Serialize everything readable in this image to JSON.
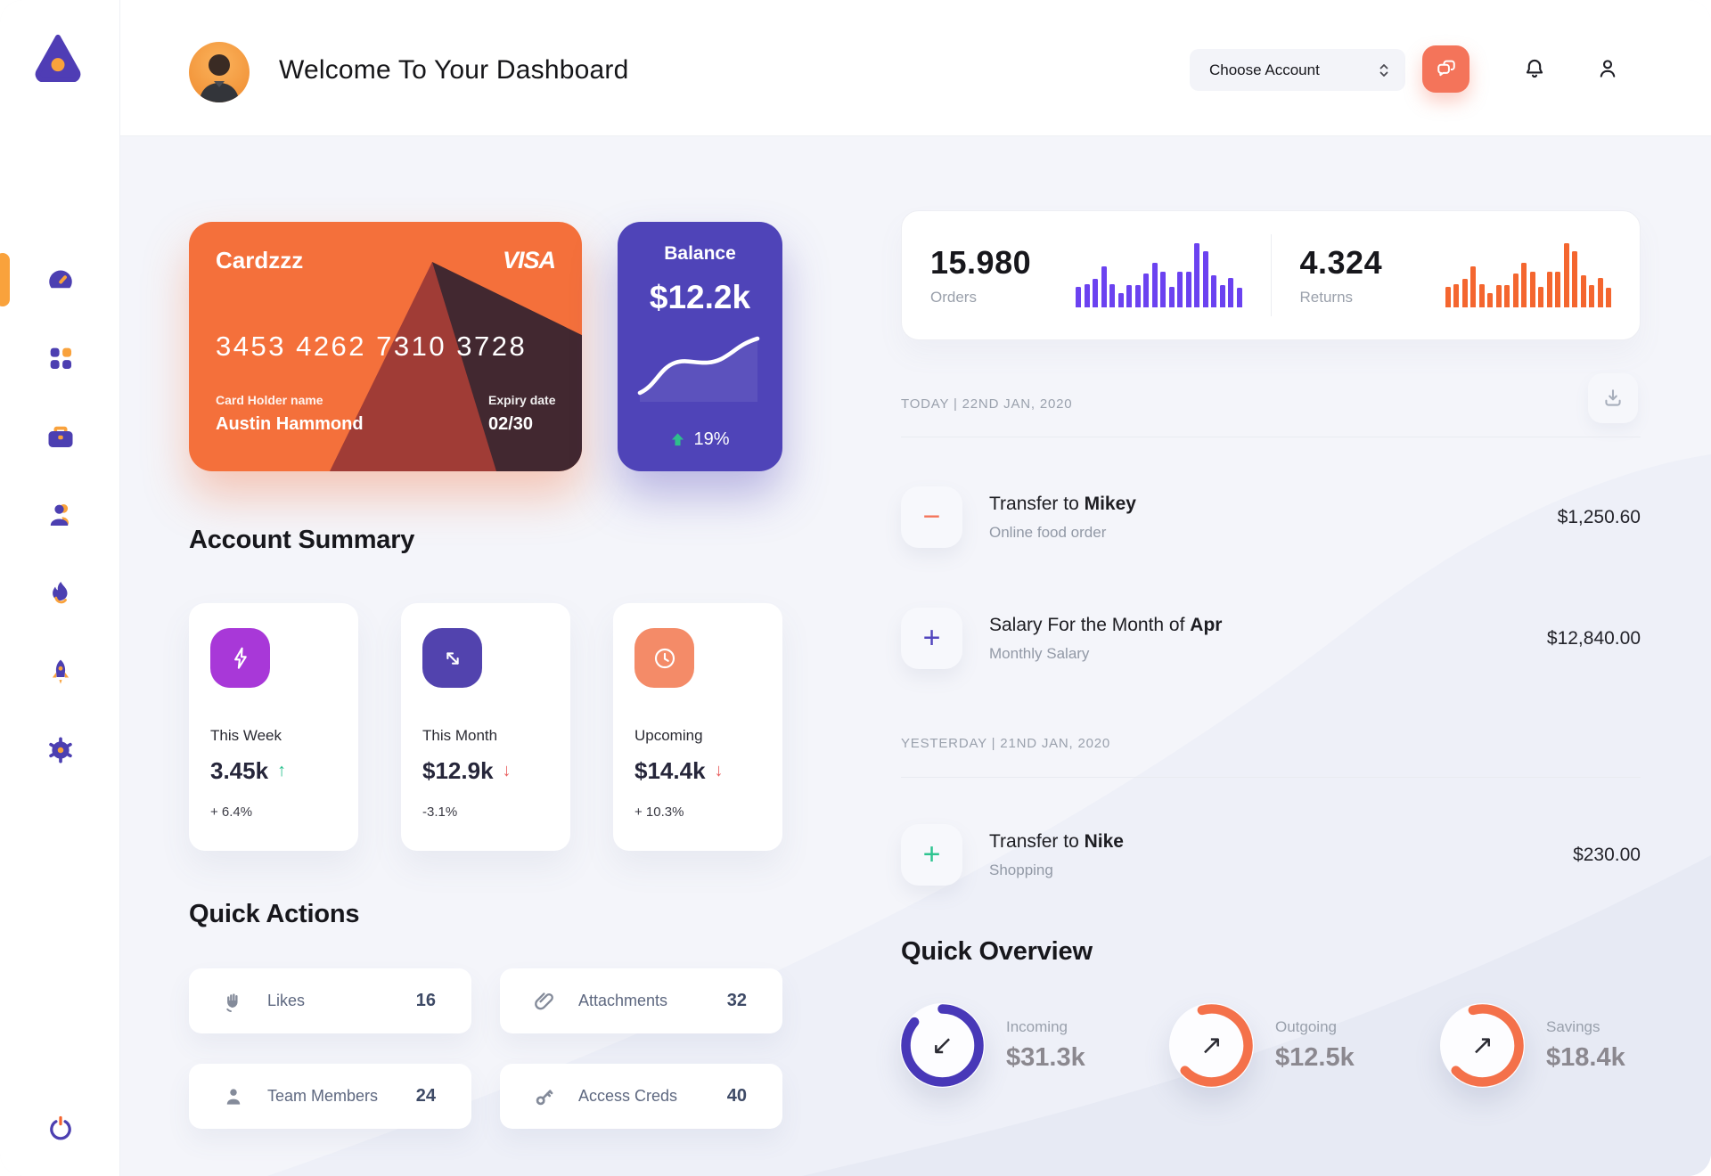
{
  "colors": {
    "accent_orange": "#f4745a",
    "accent_amber": "#f9a23c",
    "sidebar_purple": "#4c3fb1",
    "purple_bar": "#6b42f0",
    "orange_bar": "#f4662f",
    "card_orange": "#f4703b",
    "balance_purple": "#4f44b8",
    "green": "#27c08d",
    "red": "#e95f5f"
  },
  "sidebar": {
    "logo_icon": "triangle-logo",
    "items": [
      {
        "icon": "speedometer-icon",
        "active": true
      },
      {
        "icon": "apps-grid-icon",
        "active": false
      },
      {
        "icon": "briefcase-icon",
        "active": false
      },
      {
        "icon": "user-icon",
        "active": false
      },
      {
        "icon": "flame-icon",
        "active": false
      },
      {
        "icon": "rocket-icon",
        "active": false
      },
      {
        "icon": "gear-icon",
        "active": false
      }
    ],
    "power_icon": "power-icon"
  },
  "header": {
    "title": "Welcome To Your Dashboard",
    "account_selector_label": "Choose Account",
    "icons": [
      "chat-icon",
      "bell-icon",
      "profile-icon"
    ]
  },
  "bank_card": {
    "name": "Cardzzz",
    "brand": "VISA",
    "number": "3453 4262 7310 3728",
    "holder_label": "Card Holder name",
    "holder_name": "Austin Hammond",
    "expiry_label": "Expiry date",
    "expiry": "02/30"
  },
  "balance_card": {
    "label": "Balance",
    "value": "$12.2k",
    "change": "19%",
    "trend": "up"
  },
  "stats": {
    "orders": {
      "value": "15.980",
      "label": "Orders"
    },
    "returns": {
      "value": "4.324",
      "label": "Returns"
    },
    "bars": [
      32,
      36,
      44,
      64,
      36,
      22,
      35,
      35,
      53,
      69,
      56,
      32,
      56,
      56,
      100,
      88,
      50,
      35,
      46,
      31
    ]
  },
  "account_summary": {
    "title": "Account Summary",
    "cards": [
      {
        "icon": "lightning-icon",
        "icon_color": "#a838d8",
        "label": "This Week",
        "value": "3.45k",
        "trend": "up",
        "change": "+ 6.4%"
      },
      {
        "icon": "diagonal-arrows-icon",
        "icon_color": "#5243ae",
        "label": "This Month",
        "value": "$12.9k",
        "trend": "down",
        "change": "-3.1%"
      },
      {
        "icon": "clock-icon",
        "icon_color": "#f48b68",
        "label": "Upcoming",
        "value": "$14.4k",
        "trend": "down",
        "change": "+ 10.3%"
      }
    ]
  },
  "quick_actions": {
    "title": "Quick Actions",
    "items": [
      {
        "icon": "clap-icon",
        "label": "Likes",
        "count": "16"
      },
      {
        "icon": "paperclip-icon",
        "label": "Attachments",
        "count": "32"
      },
      {
        "icon": "member-icon",
        "label": "Team Members",
        "count": "24"
      },
      {
        "icon": "key-icon",
        "label": "Access Creds",
        "count": "40"
      }
    ]
  },
  "transactions": {
    "download_icon": "download-icon",
    "groups": [
      {
        "date_label": "TODAY | 22ND JAN, 2020",
        "rows": [
          {
            "sign": "minus",
            "sign_color": "#f4745a",
            "title": "Transfer to",
            "title_bold": "Mikey",
            "subtitle": "Online food order",
            "amount": "$1,250.60"
          },
          {
            "sign": "plus",
            "sign_color": "#5246be",
            "title": "Salary For the Month of",
            "title_bold": "Apr",
            "subtitle": "Monthly Salary",
            "amount": "$12,840.00"
          }
        ]
      },
      {
        "date_label": "YESTERDAY | 21ND JAN, 2020",
        "rows": [
          {
            "sign": "plus",
            "sign_color": "#2ec490",
            "title": "Transfer to",
            "title_bold": "Nike",
            "subtitle": "Shopping",
            "amount": "$230.00"
          }
        ]
      }
    ]
  },
  "quick_overview": {
    "title": "Quick Overview",
    "items": [
      {
        "label": "Incoming",
        "value": "$31.3k",
        "ring_color": "#4838b8",
        "pct": 86,
        "start_angle": -90,
        "arrow": "down-left"
      },
      {
        "label": "Outgoing",
        "value": "$12.5k",
        "ring_color": "#f4714a",
        "pct": 67,
        "start_angle": -105,
        "arrow": "up-right"
      },
      {
        "label": "Savings",
        "value": "$18.4k",
        "ring_color": "#f4714a",
        "pct": 67,
        "start_angle": -105,
        "arrow": "up-right"
      }
    ]
  }
}
